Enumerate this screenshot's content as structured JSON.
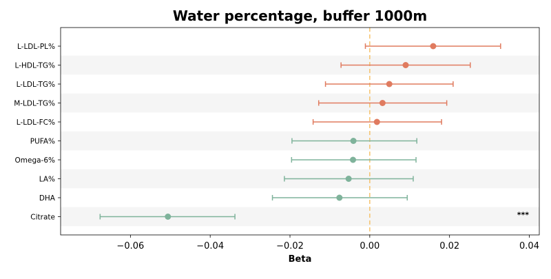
{
  "chart_data": {
    "type": "forest",
    "title": "Water percentage, buffer 1000m",
    "xlabel": "Beta",
    "ylabel": "",
    "xlim": [
      -0.0775,
      0.0425
    ],
    "xticks": [
      -0.06,
      -0.04,
      -0.02,
      0.0,
      0.02,
      0.04
    ],
    "xtick_labels": [
      "−0.06",
      "−0.04",
      "−0.02",
      "0.00",
      "0.02",
      "0.04"
    ],
    "reference_line": 0.0,
    "alternating_row_shading": true,
    "grid": false,
    "colors": {
      "positive": "#e07b5f",
      "negative": "#7fb39b",
      "reference_line": "#f5c26b",
      "row_shade": "#f5f5f5"
    },
    "rows": [
      {
        "label": "L-LDL-PL%",
        "beta": 0.0159,
        "ci_low": -0.0011,
        "ci_high": 0.0328,
        "significance": ""
      },
      {
        "label": "L-HDL-TG%",
        "beta": 0.009,
        "ci_low": -0.0072,
        "ci_high": 0.0252,
        "significance": ""
      },
      {
        "label": "L-LDL-TG%",
        "beta": 0.0049,
        "ci_low": -0.0111,
        "ci_high": 0.0209,
        "significance": ""
      },
      {
        "label": "M-LDL-TG%",
        "beta": 0.0032,
        "ci_low": -0.0128,
        "ci_high": 0.0193,
        "significance": ""
      },
      {
        "label": "L-LDL-FC%",
        "beta": 0.0018,
        "ci_low": -0.0142,
        "ci_high": 0.018,
        "significance": ""
      },
      {
        "label": "PUFA%",
        "beta": -0.0041,
        "ci_low": -0.0195,
        "ci_high": 0.0118,
        "significance": ""
      },
      {
        "label": "Omega-6%",
        "beta": -0.0042,
        "ci_low": -0.0196,
        "ci_high": 0.0116,
        "significance": ""
      },
      {
        "label": "LA%",
        "beta": -0.0053,
        "ci_low": -0.0214,
        "ci_high": 0.0109,
        "significance": ""
      },
      {
        "label": "DHA",
        "beta": -0.0076,
        "ci_low": -0.0244,
        "ci_high": 0.0094,
        "significance": ""
      },
      {
        "label": "Citrate",
        "beta": -0.0506,
        "ci_low": -0.0676,
        "ci_high": -0.0338,
        "significance": "***"
      }
    ]
  }
}
